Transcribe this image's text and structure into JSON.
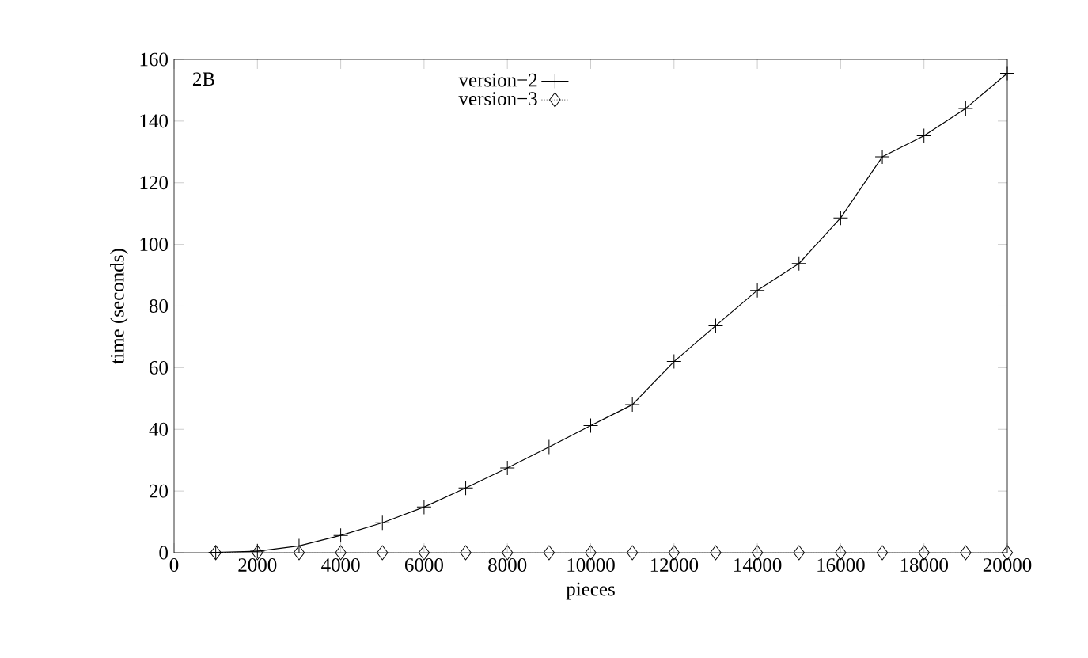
{
  "chart_data": {
    "type": "line",
    "xlabel": "pieces",
    "ylabel": "time (seconds)",
    "annotations": [
      "2B"
    ],
    "x": [
      1000,
      2000,
      3000,
      4000,
      5000,
      6000,
      7000,
      8000,
      9000,
      10000,
      11000,
      12000,
      13000,
      14000,
      15000,
      16000,
      17000,
      18000,
      19000,
      20000
    ],
    "series": [
      {
        "name": "version−2",
        "color": "#000000",
        "marker": "cross",
        "line_style": "solid",
        "values": [
          0.1,
          0.5,
          2.2,
          5.6,
          9.7,
          14.8,
          21,
          27.5,
          34.3,
          41.2,
          48,
          62,
          73.6,
          85.1,
          93.8,
          108.6,
          128.4,
          135.2,
          144.1,
          155.5
        ]
      },
      {
        "name": "version−3",
        "color": "#808080",
        "marker": "diamond",
        "line_style": "dotted",
        "values": [
          0,
          0,
          0,
          0,
          0,
          0,
          0,
          0,
          0,
          0,
          0,
          0,
          0,
          0,
          0,
          0,
          0,
          0,
          0,
          0
        ]
      }
    ],
    "xlim": [
      0,
      20000
    ],
    "ylim": [
      0,
      160
    ],
    "xticks": [
      0,
      2000,
      4000,
      6000,
      8000,
      10000,
      12000,
      14000,
      16000,
      18000,
      20000
    ],
    "yticks": [
      0,
      20,
      40,
      60,
      80,
      100,
      120,
      140,
      160
    ],
    "legend": "top",
    "grid": false
  }
}
